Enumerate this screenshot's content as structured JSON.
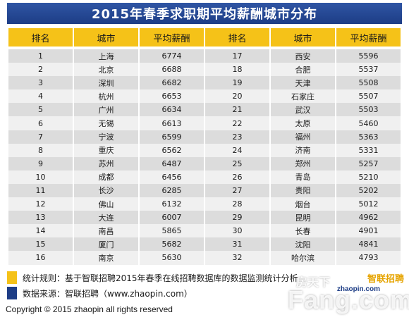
{
  "title": "2015年春季求职期平均薪酬城市分布",
  "table": {
    "headers": [
      "排名",
      "城市",
      "平均薪酬",
      "排名",
      "城市",
      "平均薪酬"
    ],
    "rows": [
      [
        "1",
        "上海",
        "6774",
        "17",
        "西安",
        "5596"
      ],
      [
        "2",
        "北京",
        "6688",
        "18",
        "合肥",
        "5537"
      ],
      [
        "3",
        "深圳",
        "6682",
        "19",
        "天津",
        "5508"
      ],
      [
        "4",
        "杭州",
        "6653",
        "20",
        "石家庄",
        "5507"
      ],
      [
        "5",
        "广州",
        "6634",
        "21",
        "武汉",
        "5503"
      ],
      [
        "6",
        "无锡",
        "6613",
        "22",
        "太原",
        "5460"
      ],
      [
        "7",
        "宁波",
        "6599",
        "23",
        "福州",
        "5363"
      ],
      [
        "8",
        "重庆",
        "6562",
        "24",
        "济南",
        "5331"
      ],
      [
        "9",
        "苏州",
        "6487",
        "25",
        "郑州",
        "5257"
      ],
      [
        "10",
        "成都",
        "6456",
        "26",
        "青岛",
        "5210"
      ],
      [
        "11",
        "长沙",
        "6285",
        "27",
        "贵阳",
        "5202"
      ],
      [
        "12",
        "佛山",
        "6132",
        "28",
        "烟台",
        "5012"
      ],
      [
        "13",
        "大连",
        "6007",
        "29",
        "昆明",
        "4962"
      ],
      [
        "14",
        "南昌",
        "5865",
        "30",
        "长春",
        "4901"
      ],
      [
        "15",
        "厦门",
        "5682",
        "31",
        "沈阳",
        "4841"
      ],
      [
        "16",
        "南京",
        "5630",
        "32",
        "哈尔滨",
        "4793"
      ]
    ]
  },
  "notes": {
    "rule": "统计规则：基于智联招聘2015年春季在线招聘数据库的数据监测统计分析",
    "source": "数据来源：智联招聘（www.zhaopin.com）"
  },
  "copyright": "Copyright  ©  2015 zhaopin all rights reserved",
  "brand": {
    "cn": "智联招聘",
    "en": "zhaopin.com"
  },
  "watermark": {
    "cn": "房天下",
    "en": "Fang.com"
  },
  "colors": {
    "title_bg": "#1d3d86",
    "header_bg": "#f5c218",
    "row_odd": "#dcdcdc",
    "row_even": "#f0f0f0"
  }
}
